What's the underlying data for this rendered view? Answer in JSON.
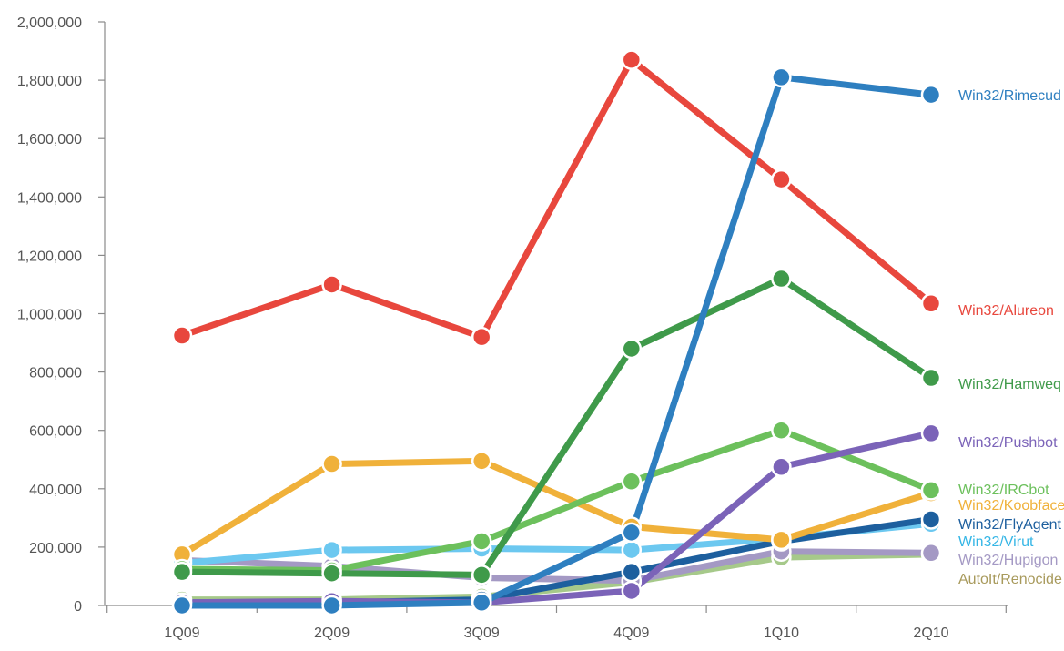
{
  "chart_data": {
    "type": "line",
    "title": "",
    "xlabel": "",
    "ylabel": "",
    "categories": [
      "1Q09",
      "2Q09",
      "3Q09",
      "4Q09",
      "1Q10",
      "2Q10"
    ],
    "ylim": [
      0,
      2000000
    ],
    "yticks": [
      0,
      200000,
      400000,
      600000,
      800000,
      1000000,
      1200000,
      1400000,
      1600000,
      1800000,
      2000000
    ],
    "ytick_labels": [
      "0",
      "200,000",
      "400,000",
      "600,000",
      "800,000",
      "1,000,000",
      "1,200,000",
      "1,400,000",
      "1,600,000",
      "1,800,000",
      "2,000,000"
    ],
    "grid": false,
    "legend": "right-end-labels",
    "series": [
      {
        "name": "Win32/Rimecud",
        "color": "#2e7fc0",
        "values": [
          0,
          0,
          10000,
          250000,
          1810000,
          1750000
        ]
      },
      {
        "name": "Win32/Alureon",
        "color": "#e8473d",
        "values": [
          925000,
          1100000,
          920000,
          1870000,
          1460000,
          1035000
        ]
      },
      {
        "name": "Win32/Hamweq",
        "color": "#3f9a4a",
        "values": [
          115000,
          110000,
          105000,
          880000,
          1120000,
          780000
        ]
      },
      {
        "name": "Win32/Pushbot",
        "color": "#7b63b8",
        "values": [
          10000,
          15000,
          10000,
          50000,
          475000,
          590000
        ]
      },
      {
        "name": "Win32/IRCbot",
        "color": "#6cc05c",
        "values": [
          125000,
          120000,
          220000,
          425000,
          600000,
          395000
        ]
      },
      {
        "name": "Win32/Koobface",
        "color": "#f0b13a",
        "values": [
          175000,
          485000,
          495000,
          270000,
          225000,
          385000
        ]
      },
      {
        "name": "Win32/FlyAgent",
        "color": "#1d5f9e",
        "values": [
          10000,
          10000,
          20000,
          115000,
          220000,
          295000
        ]
      },
      {
        "name": "Win32/Virut",
        "color": "#6cc8f0",
        "values": [
          145000,
          190000,
          195000,
          190000,
          230000,
          280000
        ]
      },
      {
        "name": "Win32/Hupigon",
        "color": "#a499c4",
        "values": [
          155000,
          135000,
          95000,
          85000,
          185000,
          180000
        ]
      },
      {
        "name": "AutoIt/Renocide",
        "color": "#a6c98a",
        "values": [
          20000,
          20000,
          30000,
          80000,
          165000,
          175000
        ]
      }
    ],
    "label_colors": {
      "Win32/Rimecud": "#2e7fc0",
      "Win32/Alureon": "#e8473d",
      "Win32/Hamweq": "#3f9a4a",
      "Win32/Pushbot": "#7b63b8",
      "Win32/IRCbot": "#6cc05c",
      "Win32/Koobface": "#f0b13a",
      "Win32/FlyAgent": "#1d5f9e",
      "Win32/Virut": "#35b6e6",
      "Win32/Hupigon": "#a499c4",
      "AutoIt/Renocide": "#a89a5c"
    }
  }
}
